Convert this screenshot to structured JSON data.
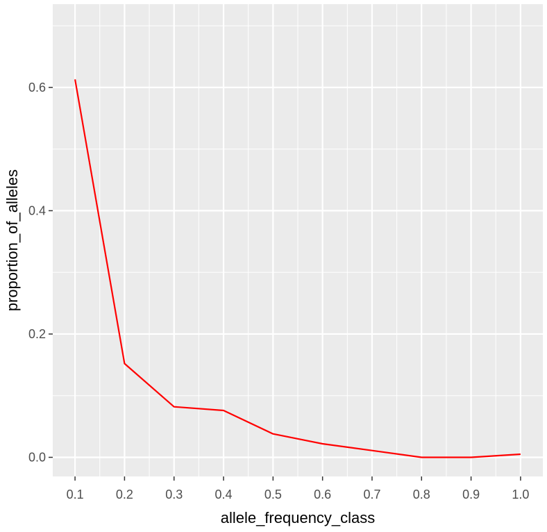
{
  "chart_data": {
    "type": "line",
    "title": "",
    "xlabel": "allele_frequency_class",
    "ylabel": "proportion_of_alleles",
    "x": [
      0.1,
      0.2,
      0.3,
      0.4,
      0.5,
      0.6,
      0.7,
      0.8,
      0.9,
      1.0
    ],
    "series": [
      {
        "values": [
          0.613,
          0.152,
          0.082,
          0.076,
          0.038,
          0.022,
          0.011,
          0.0,
          0.0,
          0.005
        ],
        "color": "#ff0000"
      }
    ],
    "xlim": [
      0.055,
      1.045
    ],
    "ylim": [
      -0.031,
      0.735
    ],
    "x_ticks": [
      0.1,
      0.2,
      0.3,
      0.4,
      0.5,
      0.6,
      0.7,
      0.8,
      0.9,
      1.0
    ],
    "x_tick_labels": [
      "0.1",
      "0.2",
      "0.3",
      "0.4",
      "0.5",
      "0.6",
      "0.7",
      "0.8",
      "0.9",
      "1.0"
    ],
    "y_ticks": [
      0.0,
      0.2,
      0.4,
      0.6
    ],
    "y_tick_labels": [
      "0.0",
      "0.2",
      "0.4",
      "0.6"
    ],
    "grid": true,
    "panel_color": "#ebebeb",
    "grid_color": "#ffffff",
    "tick_color": "#333333"
  }
}
